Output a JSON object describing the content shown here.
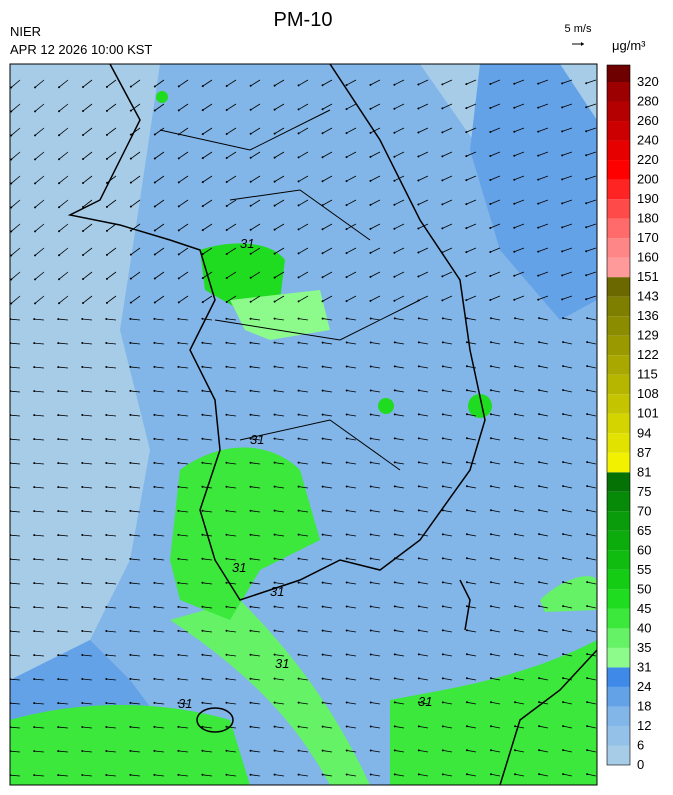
{
  "header": {
    "title": "PM-10",
    "agency": "NIER",
    "datetime": "APR 12 2026 10:00 KST"
  },
  "wind_scale": {
    "label": "5 m/s"
  },
  "legend": {
    "unit": "μg/m³",
    "levels": [
      {
        "value": 0,
        "color": "#a6cce8"
      },
      {
        "value": 6,
        "color": "#94c1e8"
      },
      {
        "value": 12,
        "color": "#82b5e8"
      },
      {
        "value": 18,
        "color": "#64a2e8"
      },
      {
        "value": 24,
        "color": "#3f8ae8"
      },
      {
        "value": 31,
        "color": "#8cfb8c"
      },
      {
        "value": 35,
        "color": "#66f266"
      },
      {
        "value": 40,
        "color": "#3be83b"
      },
      {
        "value": 45,
        "color": "#20dc20"
      },
      {
        "value": 50,
        "color": "#14cc14"
      },
      {
        "value": 55,
        "color": "#0fbc0f"
      },
      {
        "value": 60,
        "color": "#0cac0c"
      },
      {
        "value": 65,
        "color": "#0a9c0a"
      },
      {
        "value": 70,
        "color": "#078a07"
      },
      {
        "value": 75,
        "color": "#057205"
      },
      {
        "value": 81,
        "color": "#f2f200"
      },
      {
        "value": 87,
        "color": "#e2e200"
      },
      {
        "value": 94,
        "color": "#d4d400"
      },
      {
        "value": 101,
        "color": "#c4c400"
      },
      {
        "value": 108,
        "color": "#b6b600"
      },
      {
        "value": 115,
        "color": "#a8a800"
      },
      {
        "value": 122,
        "color": "#9a9a00"
      },
      {
        "value": 129,
        "color": "#8c8c00"
      },
      {
        "value": 136,
        "color": "#7e7e00"
      },
      {
        "value": 143,
        "color": "#6c6800"
      },
      {
        "value": 151,
        "color": "#ff9a9a"
      },
      {
        "value": 160,
        "color": "#ff8686"
      },
      {
        "value": 170,
        "color": "#ff6a6a"
      },
      {
        "value": 180,
        "color": "#ff4a4a"
      },
      {
        "value": 190,
        "color": "#ff2424"
      },
      {
        "value": 200,
        "color": "#ff0000"
      },
      {
        "value": 220,
        "color": "#e60000"
      },
      {
        "value": 240,
        "color": "#cc0000"
      },
      {
        "value": 260,
        "color": "#b40000"
      },
      {
        "value": 280,
        "color": "#9c0000"
      },
      {
        "value": 320,
        "color": "#6e0000"
      }
    ]
  },
  "map": {
    "contour_labels": [
      "31",
      "31",
      "31",
      "31",
      "31",
      "31",
      "31"
    ]
  }
}
